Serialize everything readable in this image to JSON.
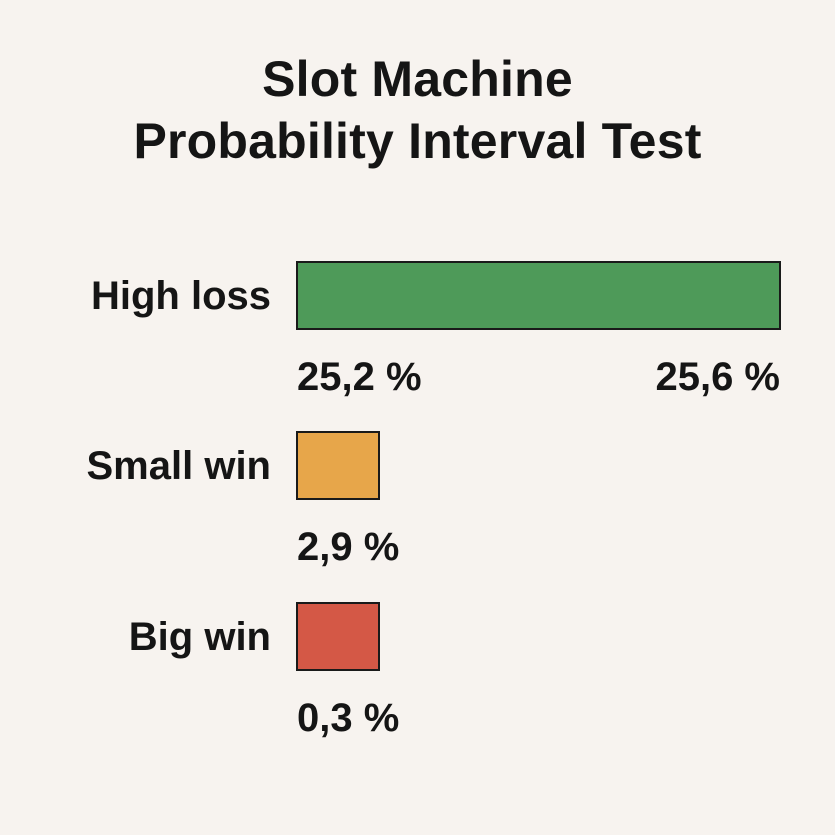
{
  "chart_data": {
    "type": "bar",
    "title_lines": [
      "Slot Machine",
      "Probability Interval Test"
    ],
    "categories": [
      "High loss",
      "Small win",
      "Big win"
    ],
    "values": [
      25.6,
      2.9,
      0.3
    ],
    "interval_lower": [
      25.2,
      null,
      null
    ],
    "labels": {
      "High loss": [
        "25,2 %",
        "25,6 %"
      ],
      "Small win": [
        "2,9 %"
      ],
      "Big win": [
        "0,3 %"
      ]
    },
    "colors": {
      "High loss": "#4e9a59",
      "Small win": "#e7a64a",
      "Big win": "#d45846",
      "border": "#1a1a1a",
      "background": "#f7f3ef"
    },
    "axis": {
      "x_visible": false,
      "y_visible": false
    },
    "grid": false,
    "legend": "none"
  }
}
